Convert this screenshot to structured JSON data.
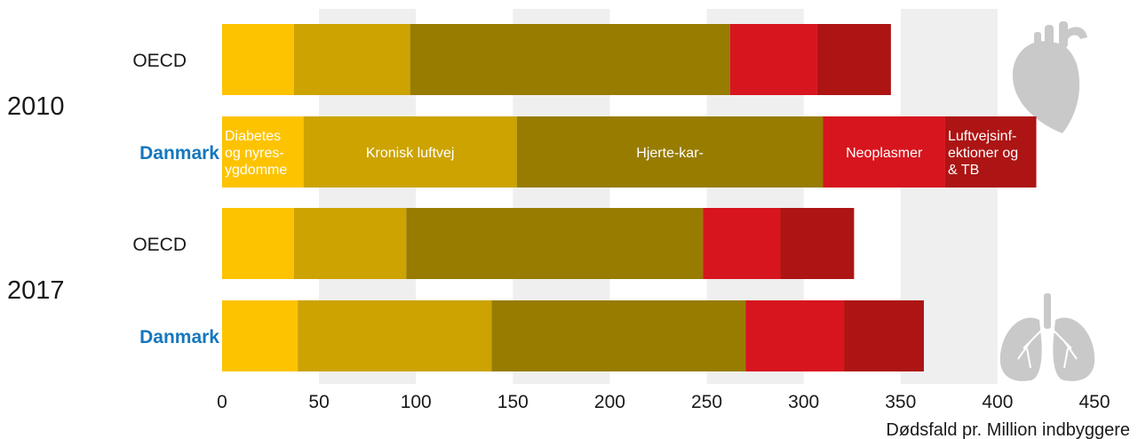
{
  "chart_data": {
    "type": "bar",
    "orientation": "horizontal",
    "stacked": true,
    "xlabel": "Dødsfald pr. Million indbyggere",
    "xlim": [
      0,
      450
    ],
    "xticks": [
      "0",
      "50",
      "100",
      "150",
      "200",
      "250",
      "300",
      "350",
      "400",
      "450"
    ],
    "groups": [
      {
        "year": "2010",
        "bars": [
          0,
          1
        ]
      },
      {
        "year": "2017",
        "bars": [
          2,
          3
        ]
      }
    ],
    "categories": [
      "OECD",
      "Danmark",
      "OECD",
      "Danmark"
    ],
    "highlight_category": "Danmark",
    "series": [
      {
        "name": "Diabetes og nyresygdomme",
        "label_lines": [
          "Diabetes",
          "og nyres-",
          "ygdomme"
        ],
        "color": "#fdc300",
        "values": [
          37,
          42,
          37,
          39
        ]
      },
      {
        "name": "Kronisk luftvej",
        "label_lines": [
          "Kronisk luftvej"
        ],
        "color": "#cca300",
        "values": [
          60,
          110,
          58,
          100
        ]
      },
      {
        "name": "Hjerte-kar-",
        "label_lines": [
          "Hjerte-kar-"
        ],
        "color": "#977c00",
        "values": [
          165,
          158,
          153,
          131
        ]
      },
      {
        "name": "Neoplasmer",
        "label_lines": [
          "Neoplasmer"
        ],
        "color": "#d7151e",
        "values": [
          45,
          63,
          40,
          51
        ]
      },
      {
        "name": "Luftvejsinfektioner og TB",
        "label_lines": [
          "Luftvejsinf-",
          "ektioner og",
          "& TB"
        ],
        "color": "#ad1414",
        "values": [
          38,
          47,
          38,
          41
        ]
      }
    ],
    "labeled_bar_index": 1,
    "grid": "alternating vertical bands",
    "icons": [
      "heart-icon",
      "lungs-icon"
    ]
  }
}
